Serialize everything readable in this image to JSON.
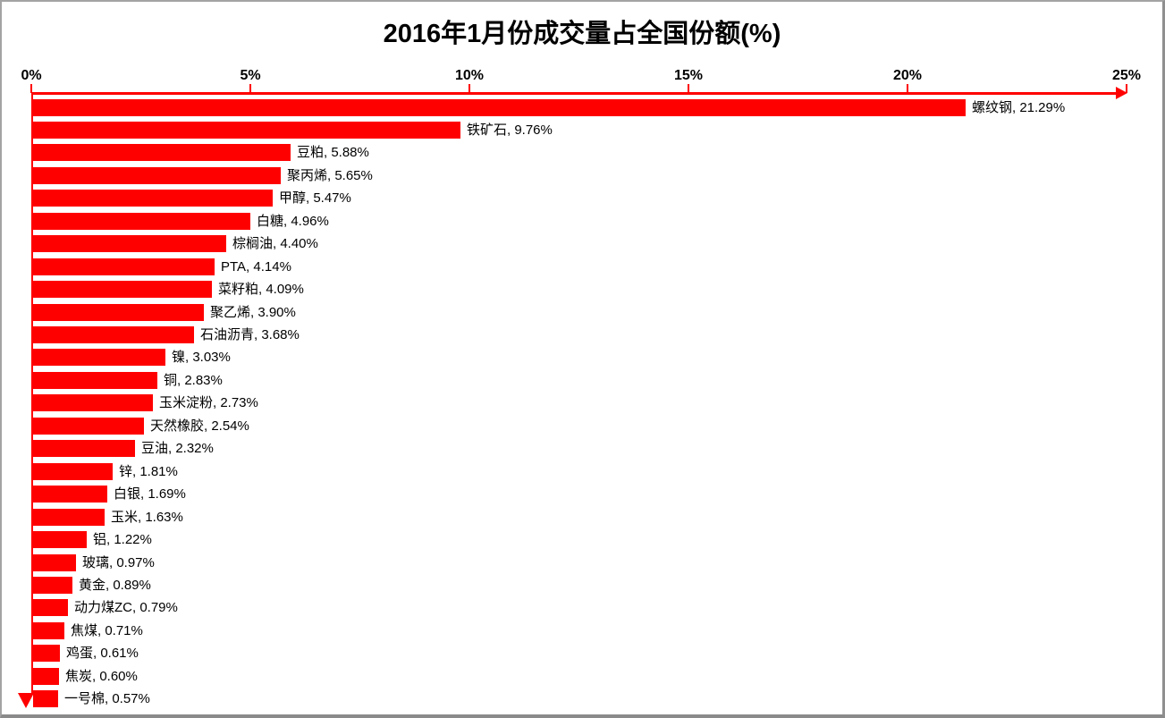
{
  "chart_data": {
    "type": "bar",
    "orientation": "horizontal",
    "title": "2016年1月份成交量占全国份额(%)",
    "categories": [
      "螺纹钢",
      "铁矿石",
      "豆粕",
      "聚丙烯",
      "甲醇",
      "白糖",
      "棕榈油",
      "PTA",
      "菜籽粕",
      "聚乙烯",
      "石油沥青",
      "镍",
      "铜",
      "玉米淀粉",
      "天然橡胶",
      "豆油",
      "锌",
      "白银",
      "玉米",
      "铝",
      "玻璃",
      "黄金",
      "动力煤ZC",
      "焦煤",
      "鸡蛋",
      "焦炭",
      "一号棉"
    ],
    "values": [
      21.29,
      9.76,
      5.88,
      5.65,
      5.47,
      4.96,
      4.4,
      4.14,
      4.09,
      3.9,
      3.68,
      3.03,
      2.83,
      2.73,
      2.54,
      2.32,
      1.81,
      1.69,
      1.63,
      1.22,
      0.97,
      0.89,
      0.79,
      0.71,
      0.61,
      0.6,
      0.57
    ],
    "data_label_separator": ", ",
    "data_label_suffix": "%",
    "x_ticks": [
      "0%",
      "5%",
      "10%",
      "15%",
      "20%",
      "25%"
    ],
    "xlim": [
      0,
      25
    ],
    "grid": false,
    "legend": false,
    "bar_color": "#FF0000",
    "axis_color": "#FF0000",
    "text_color": "#000000",
    "background_color": "#FFFFFF"
  }
}
